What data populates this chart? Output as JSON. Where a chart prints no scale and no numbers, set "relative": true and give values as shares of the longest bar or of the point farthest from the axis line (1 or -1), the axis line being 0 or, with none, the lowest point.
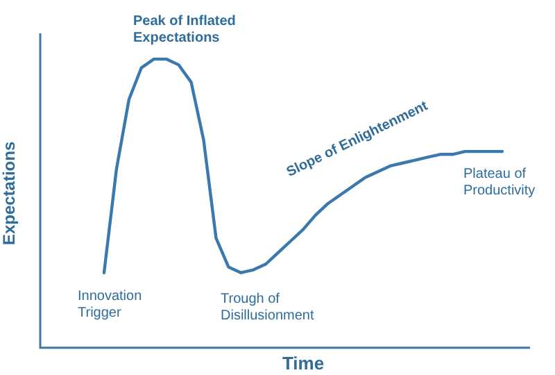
{
  "chart_data": {
    "type": "line",
    "relative": true,
    "xlabel": "Time",
    "ylabel": "Expectations",
    "color": "#3a78ad",
    "grid": false,
    "legend": false,
    "marker": "none",
    "line_style": "solid",
    "categories": [
      null,
      null,
      null,
      null,
      null,
      null,
      null,
      null,
      null,
      null,
      null,
      null,
      null,
      null,
      null,
      null,
      null,
      null,
      null,
      null,
      null,
      null,
      null,
      null,
      null,
      null,
      null,
      null,
      null,
      null,
      null,
      null,
      null
    ],
    "values": [
      0.26,
      0.62,
      0.86,
      0.97,
      1.0,
      1.0,
      0.98,
      0.92,
      0.72,
      0.38,
      0.28,
      0.26,
      0.27,
      0.29,
      0.33,
      0.37,
      0.41,
      0.46,
      0.5,
      0.53,
      0.56,
      0.59,
      0.61,
      0.63,
      0.64,
      0.65,
      0.66,
      0.67,
      0.67,
      0.68,
      0.68,
      0.68,
      0.68
    ],
    "annotations": [
      "Peak of Inflated Expectations",
      "Innovation Trigger",
      "Trough of Disillusionment",
      "Slope of Enlightenment",
      "Plateau of Productivity"
    ]
  }
}
